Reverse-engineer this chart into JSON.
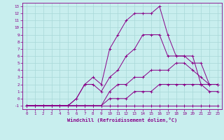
{
  "xlabel": "Windchill (Refroidissement éolien,°C)",
  "background_color": "#c8eeee",
  "grid_color": "#a8d8d8",
  "line_color": "#880088",
  "xlim": [
    -0.5,
    23.5
  ],
  "ylim": [
    -1.5,
    13.5
  ],
  "xticks": [
    0,
    1,
    2,
    3,
    4,
    5,
    6,
    7,
    8,
    9,
    10,
    11,
    12,
    13,
    14,
    15,
    16,
    17,
    18,
    19,
    20,
    21,
    22,
    23
  ],
  "yticks": [
    -1,
    0,
    1,
    2,
    3,
    4,
    5,
    6,
    7,
    8,
    9,
    10,
    11,
    12,
    13
  ],
  "series": [
    {
      "x": [
        0,
        1,
        2,
        3,
        4,
        5,
        6,
        7,
        8,
        9,
        10,
        11,
        12,
        13,
        14,
        15,
        16,
        17,
        18,
        19,
        20,
        21,
        22,
        23
      ],
      "y": [
        -1,
        -1,
        -1,
        -1,
        -1,
        -1,
        -1,
        -1,
        -1,
        -1,
        -1,
        -1,
        -1,
        -1,
        -1,
        -1,
        -1,
        -1,
        -1,
        -1,
        -1,
        -1,
        -1,
        -1
      ]
    },
    {
      "x": [
        0,
        1,
        2,
        3,
        4,
        5,
        6,
        7,
        8,
        9,
        10,
        11,
        12,
        13,
        14,
        15,
        16,
        17,
        18,
        19,
        20,
        21,
        22,
        23
      ],
      "y": [
        -1,
        -1,
        -1,
        -1,
        -1,
        -1,
        -1,
        -1,
        -1,
        -1,
        0,
        0,
        0,
        1,
        1,
        1,
        2,
        2,
        2,
        2,
        2,
        2,
        1,
        1
      ]
    },
    {
      "x": [
        0,
        1,
        2,
        3,
        4,
        5,
        6,
        7,
        8,
        9,
        10,
        11,
        12,
        13,
        14,
        15,
        16,
        17,
        18,
        19,
        20,
        21,
        22,
        23
      ],
      "y": [
        -1,
        -1,
        -1,
        -1,
        -1,
        -1,
        -1,
        -1,
        -1,
        -1,
        1,
        2,
        2,
        3,
        3,
        4,
        4,
        4,
        5,
        5,
        4,
        3,
        2,
        2
      ]
    },
    {
      "x": [
        0,
        1,
        2,
        3,
        4,
        5,
        6,
        7,
        8,
        9,
        10,
        11,
        12,
        13,
        14,
        15,
        16,
        17,
        18,
        19,
        20,
        21,
        22,
        23
      ],
      "y": [
        -1,
        -1,
        -1,
        -1,
        -1,
        -1,
        0,
        2,
        2,
        1,
        3,
        4,
        6,
        7,
        9,
        9,
        9,
        6,
        6,
        6,
        6,
        2,
        2,
        2
      ]
    },
    {
      "x": [
        0,
        1,
        2,
        3,
        4,
        5,
        6,
        7,
        8,
        9,
        10,
        11,
        12,
        13,
        14,
        15,
        16,
        17,
        18,
        19,
        20,
        21,
        22,
        23
      ],
      "y": [
        -1,
        -1,
        -1,
        -1,
        -1,
        -1,
        0,
        2,
        3,
        2,
        7,
        9,
        11,
        12,
        12,
        12,
        13,
        9,
        6,
        6,
        5,
        5,
        2,
        2
      ]
    }
  ]
}
